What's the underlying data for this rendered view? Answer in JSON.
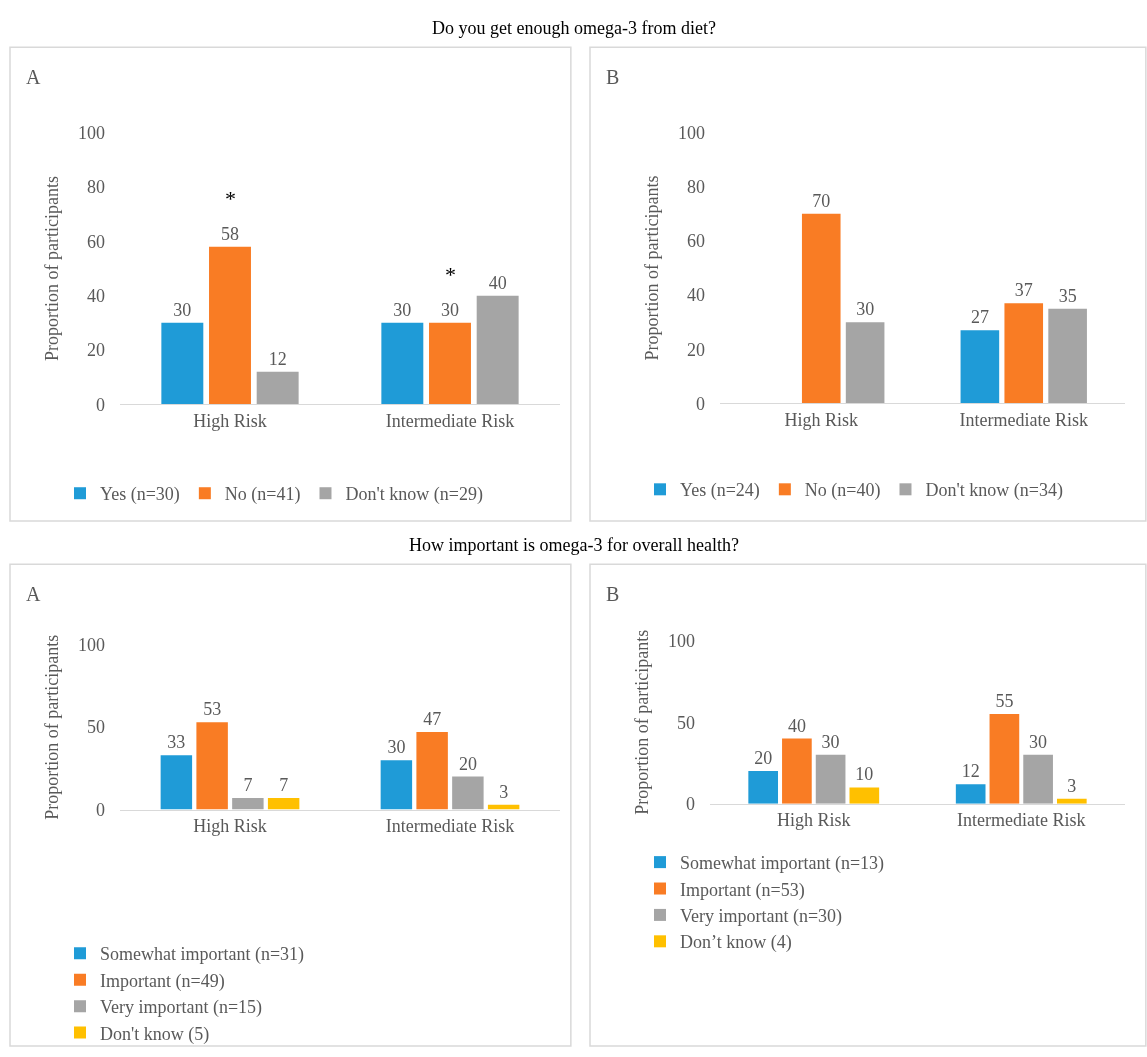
{
  "chart_data": [
    {
      "type": "bar",
      "title": "Do you get enough omega-3 from diet?",
      "ylabel": "Proportion of participants",
      "categories": [
        "High Risk",
        "Intermediate Risk"
      ],
      "series": [
        {
          "name": "Yes (n=30)",
          "color": "#1f9bd7",
          "values": [
            30,
            30
          ]
        },
        {
          "name": "No (n=41)",
          "color": "#f97c24",
          "values": [
            58,
            30
          ]
        },
        {
          "name": "Don't know (n=29)",
          "color": "#a5a5a5",
          "values": [
            12,
            40
          ]
        }
      ],
      "ylim": [
        0,
        100
      ],
      "yticks": [
        0,
        20,
        40,
        60,
        80,
        100
      ],
      "data_labels": true,
      "legend": "bottom",
      "grid": false,
      "annotations": [
        "A",
        {
          "text": "*",
          "x": "High Risk",
          "y": 58
        },
        {
          "text": "*",
          "x": "Intermediate Risk",
          "y": 30
        }
      ]
    },
    {
      "type": "bar",
      "ylabel": "Proportion of participants",
      "categories": [
        "High Risk",
        "Intermediate Risk"
      ],
      "series": [
        {
          "name": "Yes (n=24)",
          "color": "#1f9bd7",
          "values": [
            null,
            27
          ]
        },
        {
          "name": "No (n=40)",
          "color": "#f97c24",
          "values": [
            70,
            37
          ]
        },
        {
          "name": "Don't know (n=34)",
          "color": "#a5a5a5",
          "values": [
            30,
            35
          ]
        }
      ],
      "ylim": [
        0,
        100
      ],
      "yticks": [
        0,
        20,
        40,
        60,
        80,
        100
      ],
      "data_labels": true,
      "legend": "bottom",
      "grid": false,
      "annotations": [
        "B"
      ]
    },
    {
      "type": "bar",
      "title": "How important is omega-3 for overall health?",
      "ylabel": "Proportion of participants",
      "categories": [
        "High Risk",
        "Intermediate Risk"
      ],
      "series": [
        {
          "name": "Somewhat important (n=31)",
          "color": "#1f9bd7",
          "values": [
            33,
            30
          ]
        },
        {
          "name": "Important (n=49)",
          "color": "#f97c24",
          "values": [
            53,
            47
          ]
        },
        {
          "name": "Very important (n=15)",
          "color": "#a5a5a5",
          "values": [
            7,
            20
          ]
        },
        {
          "name": "Don't know (5)",
          "color": "#ffc000",
          "values": [
            7,
            3
          ]
        }
      ],
      "ylim": [
        0,
        100
      ],
      "yticks": [
        0,
        50,
        100
      ],
      "data_labels": true,
      "legend": "bottom",
      "grid": false,
      "annotations": [
        "A"
      ]
    },
    {
      "type": "bar",
      "ylabel": "Proportion of participants",
      "categories": [
        "High Risk",
        "Intermediate Risk"
      ],
      "series": [
        {
          "name": "Somewhat important (n=13)",
          "color": "#1f9bd7",
          "values": [
            20,
            12
          ]
        },
        {
          "name": "Important (n=53)",
          "color": "#f97c24",
          "values": [
            40,
            55
          ]
        },
        {
          "name": "Very important (n=30)",
          "color": "#a5a5a5",
          "values": [
            30,
            30
          ]
        },
        {
          "name": "Don’t know (4)",
          "color": "#ffc000",
          "values": [
            10,
            3
          ]
        }
      ],
      "ylim": [
        0,
        100
      ],
      "yticks": [
        0,
        50,
        100
      ],
      "data_labels": true,
      "legend": "bottom",
      "grid": false,
      "annotations": [
        "B"
      ]
    }
  ]
}
